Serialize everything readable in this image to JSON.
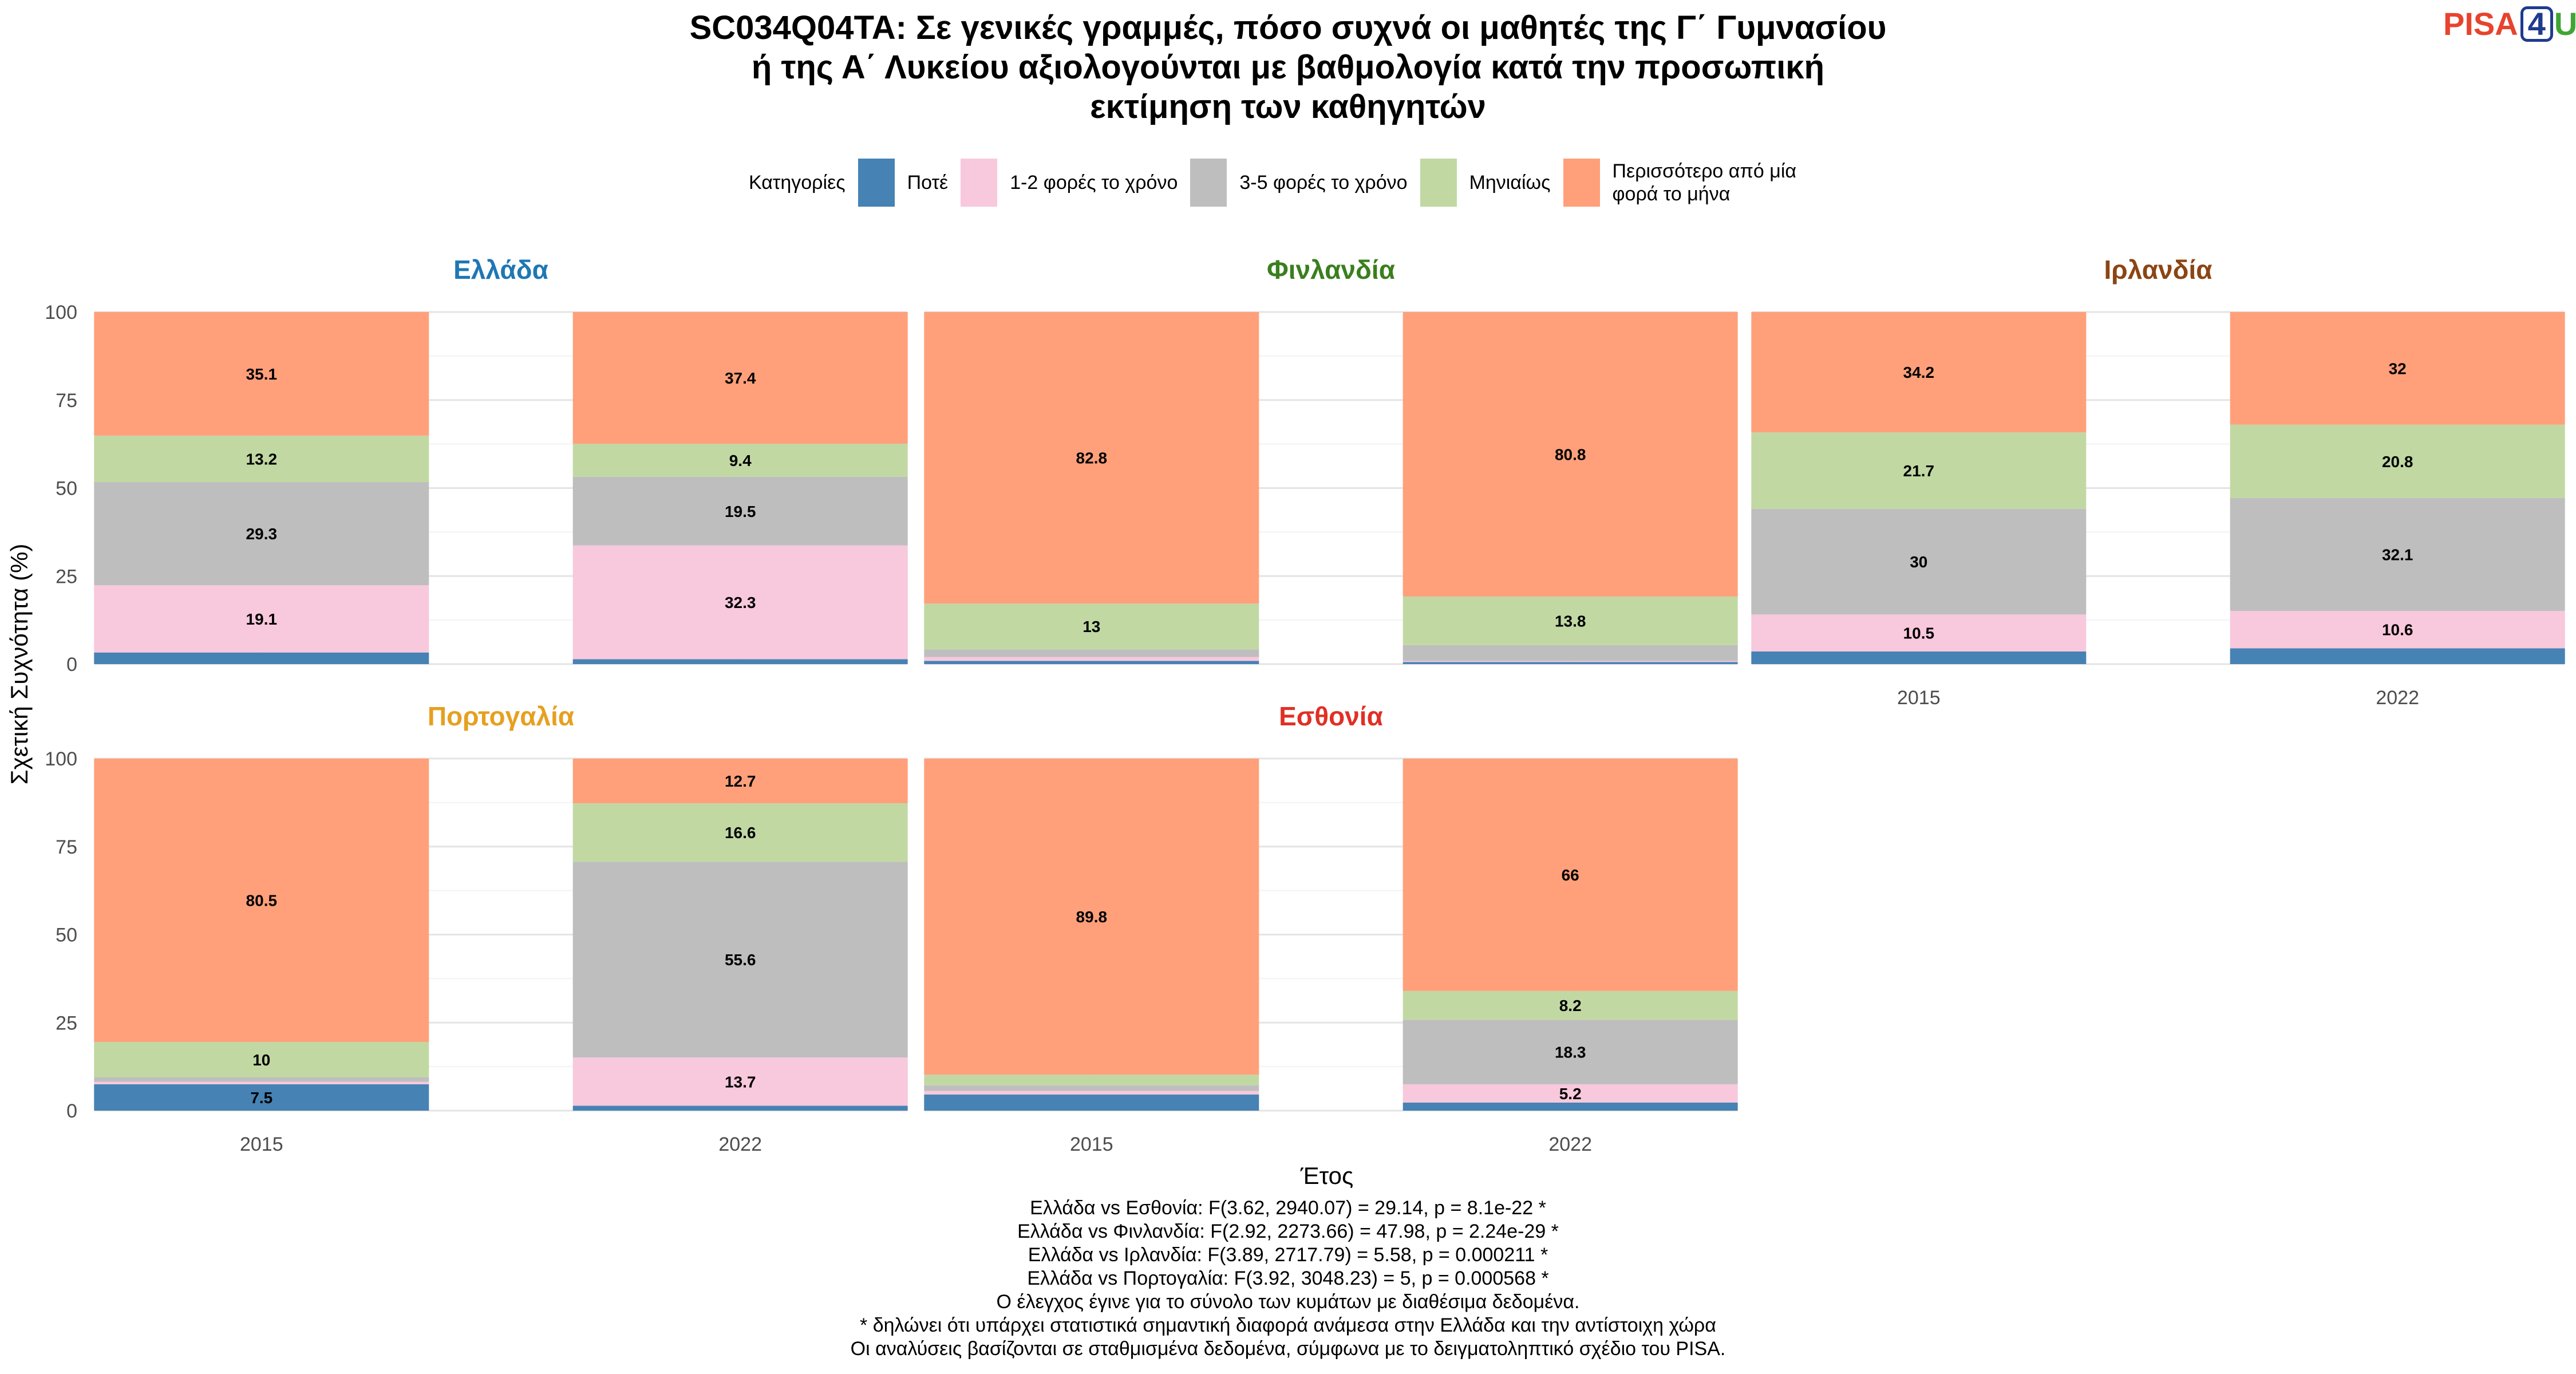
{
  "title_lines": [
    "SC034Q04TA: Σε γενικές γραμμές, πόσο συχνά οι μαθητές της Γ΄ Γυμνασίου",
    "ή της Α΄ Λυκείου αξιολογούνται με βαθμολογία κατά την προσωπική",
    "εκτίμηση των καθηγητών"
  ],
  "logo": {
    "part1": "PISA",
    "part2": "4",
    "part3": "U"
  },
  "legend": {
    "title": "Κατηγορίες",
    "position": "top",
    "items": [
      {
        "label": "Ποτέ",
        "color": "#4682b4"
      },
      {
        "label": "1-2 φορές το χρόνο",
        "color": "#f8c8dc"
      },
      {
        "label": "3-5 φορές το χρόνο",
        "color": "#bebebe"
      },
      {
        "label": "Μηνιαίως",
        "color": "#c1d8a3"
      },
      {
        "label": "Περισσότερο από μία φορά το μήνα",
        "color": "#ffa07a"
      }
    ]
  },
  "notes": [
    "Ελλάδα vs Εσθονία: F(3.62, 2940.07) = 29.14, p = 8.1e-22 *",
    "Ελλάδα vs Φινλανδία: F(2.92, 2273.66) = 47.98, p = 2.24e-29 *",
    "Ελλάδα vs Ιρλανδία: F(3.89, 2717.79) = 5.58, p = 0.000211 *",
    "Ελλάδα vs Πορτογαλία: F(3.92, 3048.23) = 5, p = 0.000568 *",
    "Ο έλεγχος έγινε για το σύνολο των κυμάτων με διαθέσιμα δεδομένα.",
    "* δηλώνει ότι υπάρχει στατιστικά σημαντική διαφορά ανάμεσα στην Ελλάδα και την αντίστοιχη χώρα",
    "Οι αναλύσεις βασίζονται σε σταθμισμένα δεδομένα, σύμφωνα με το δειγματοληπτικό σχέδιο του PISA."
  ],
  "chart_data": {
    "type": "bar",
    "stacked": true,
    "xlabel": "Έτος",
    "ylabel": "Σχετική Συχνότητα (%)",
    "ylim": [
      0,
      100
    ],
    "yticks": [
      0,
      25,
      50,
      75,
      100
    ],
    "categories": [
      "2015",
      "2022"
    ],
    "grid": true,
    "panels": [
      {
        "name": "Ελλάδα",
        "title_color": "#1f77b4",
        "series": [
          {
            "name": "Ποτέ",
            "values": [
              3.3,
              1.4
            ]
          },
          {
            "name": "1-2 φορές το χρόνο",
            "values": [
              19.1,
              32.3
            ]
          },
          {
            "name": "3-5 φορές το χρόνο",
            "values": [
              29.3,
              19.5
            ]
          },
          {
            "name": "Μηνιαίως",
            "values": [
              13.2,
              9.4
            ]
          },
          {
            "name": "Περισσότερο από μία φορά το μήνα",
            "values": [
              35.1,
              37.4
            ]
          }
        ]
      },
      {
        "name": "Φινλανδία",
        "title_color": "#3a7f1e",
        "series": [
          {
            "name": "Ποτέ",
            "values": [
              0.9,
              0.6
            ]
          },
          {
            "name": "1-2 φορές το χρόνο",
            "values": [
              1.1,
              0.3
            ]
          },
          {
            "name": "3-5 φορές το χρόνο",
            "values": [
              2.2,
              4.5
            ]
          },
          {
            "name": "Μηνιαίως",
            "values": [
              13,
              13.8
            ]
          },
          {
            "name": "Περισσότερο από μία φορά το μήνα",
            "values": [
              82.8,
              80.8
            ]
          }
        ]
      },
      {
        "name": "Ιρλανδία",
        "title_color": "#8b4513",
        "series": [
          {
            "name": "Ποτέ",
            "values": [
              3.6,
              4.5
            ]
          },
          {
            "name": "1-2 φορές το χρόνο",
            "values": [
              10.5,
              10.6
            ]
          },
          {
            "name": "3-5 φορές το χρόνο",
            "values": [
              30,
              32.1
            ]
          },
          {
            "name": "Μηνιαίως",
            "values": [
              21.7,
              20.8
            ]
          },
          {
            "name": "Περισσότερο από μία φορά το μήνα",
            "values": [
              34.2,
              32
            ]
          }
        ]
      },
      {
        "name": "Πορτογαλία",
        "title_color": "#e6a020",
        "series": [
          {
            "name": "Ποτέ",
            "values": [
              7.5,
              1.4
            ]
          },
          {
            "name": "1-2 φορές το χρόνο",
            "values": [
              0.7,
              13.7
            ]
          },
          {
            "name": "3-5 φορές το χρόνο",
            "values": [
              1.3,
              55.6
            ]
          },
          {
            "name": "Μηνιαίως",
            "values": [
              10,
              16.6
            ]
          },
          {
            "name": "Περισσότερο από μία φορά το μήνα",
            "values": [
              80.5,
              12.7
            ]
          }
        ]
      },
      {
        "name": "Εσθονία",
        "title_color": "#e03025",
        "series": [
          {
            "name": "Ποτέ",
            "values": [
              4.6,
              2.3
            ]
          },
          {
            "name": "1-2 φορές το χρόνο",
            "values": [
              1.0,
              5.2
            ]
          },
          {
            "name": "3-5 φορές το χρόνο",
            "values": [
              1.6,
              18.3
            ]
          },
          {
            "name": "Μηνιαίως",
            "values": [
              3.0,
              8.2
            ]
          },
          {
            "name": "Περισσότερο από μία φορά το μήνα",
            "values": [
              89.8,
              66
            ]
          }
        ]
      }
    ]
  }
}
